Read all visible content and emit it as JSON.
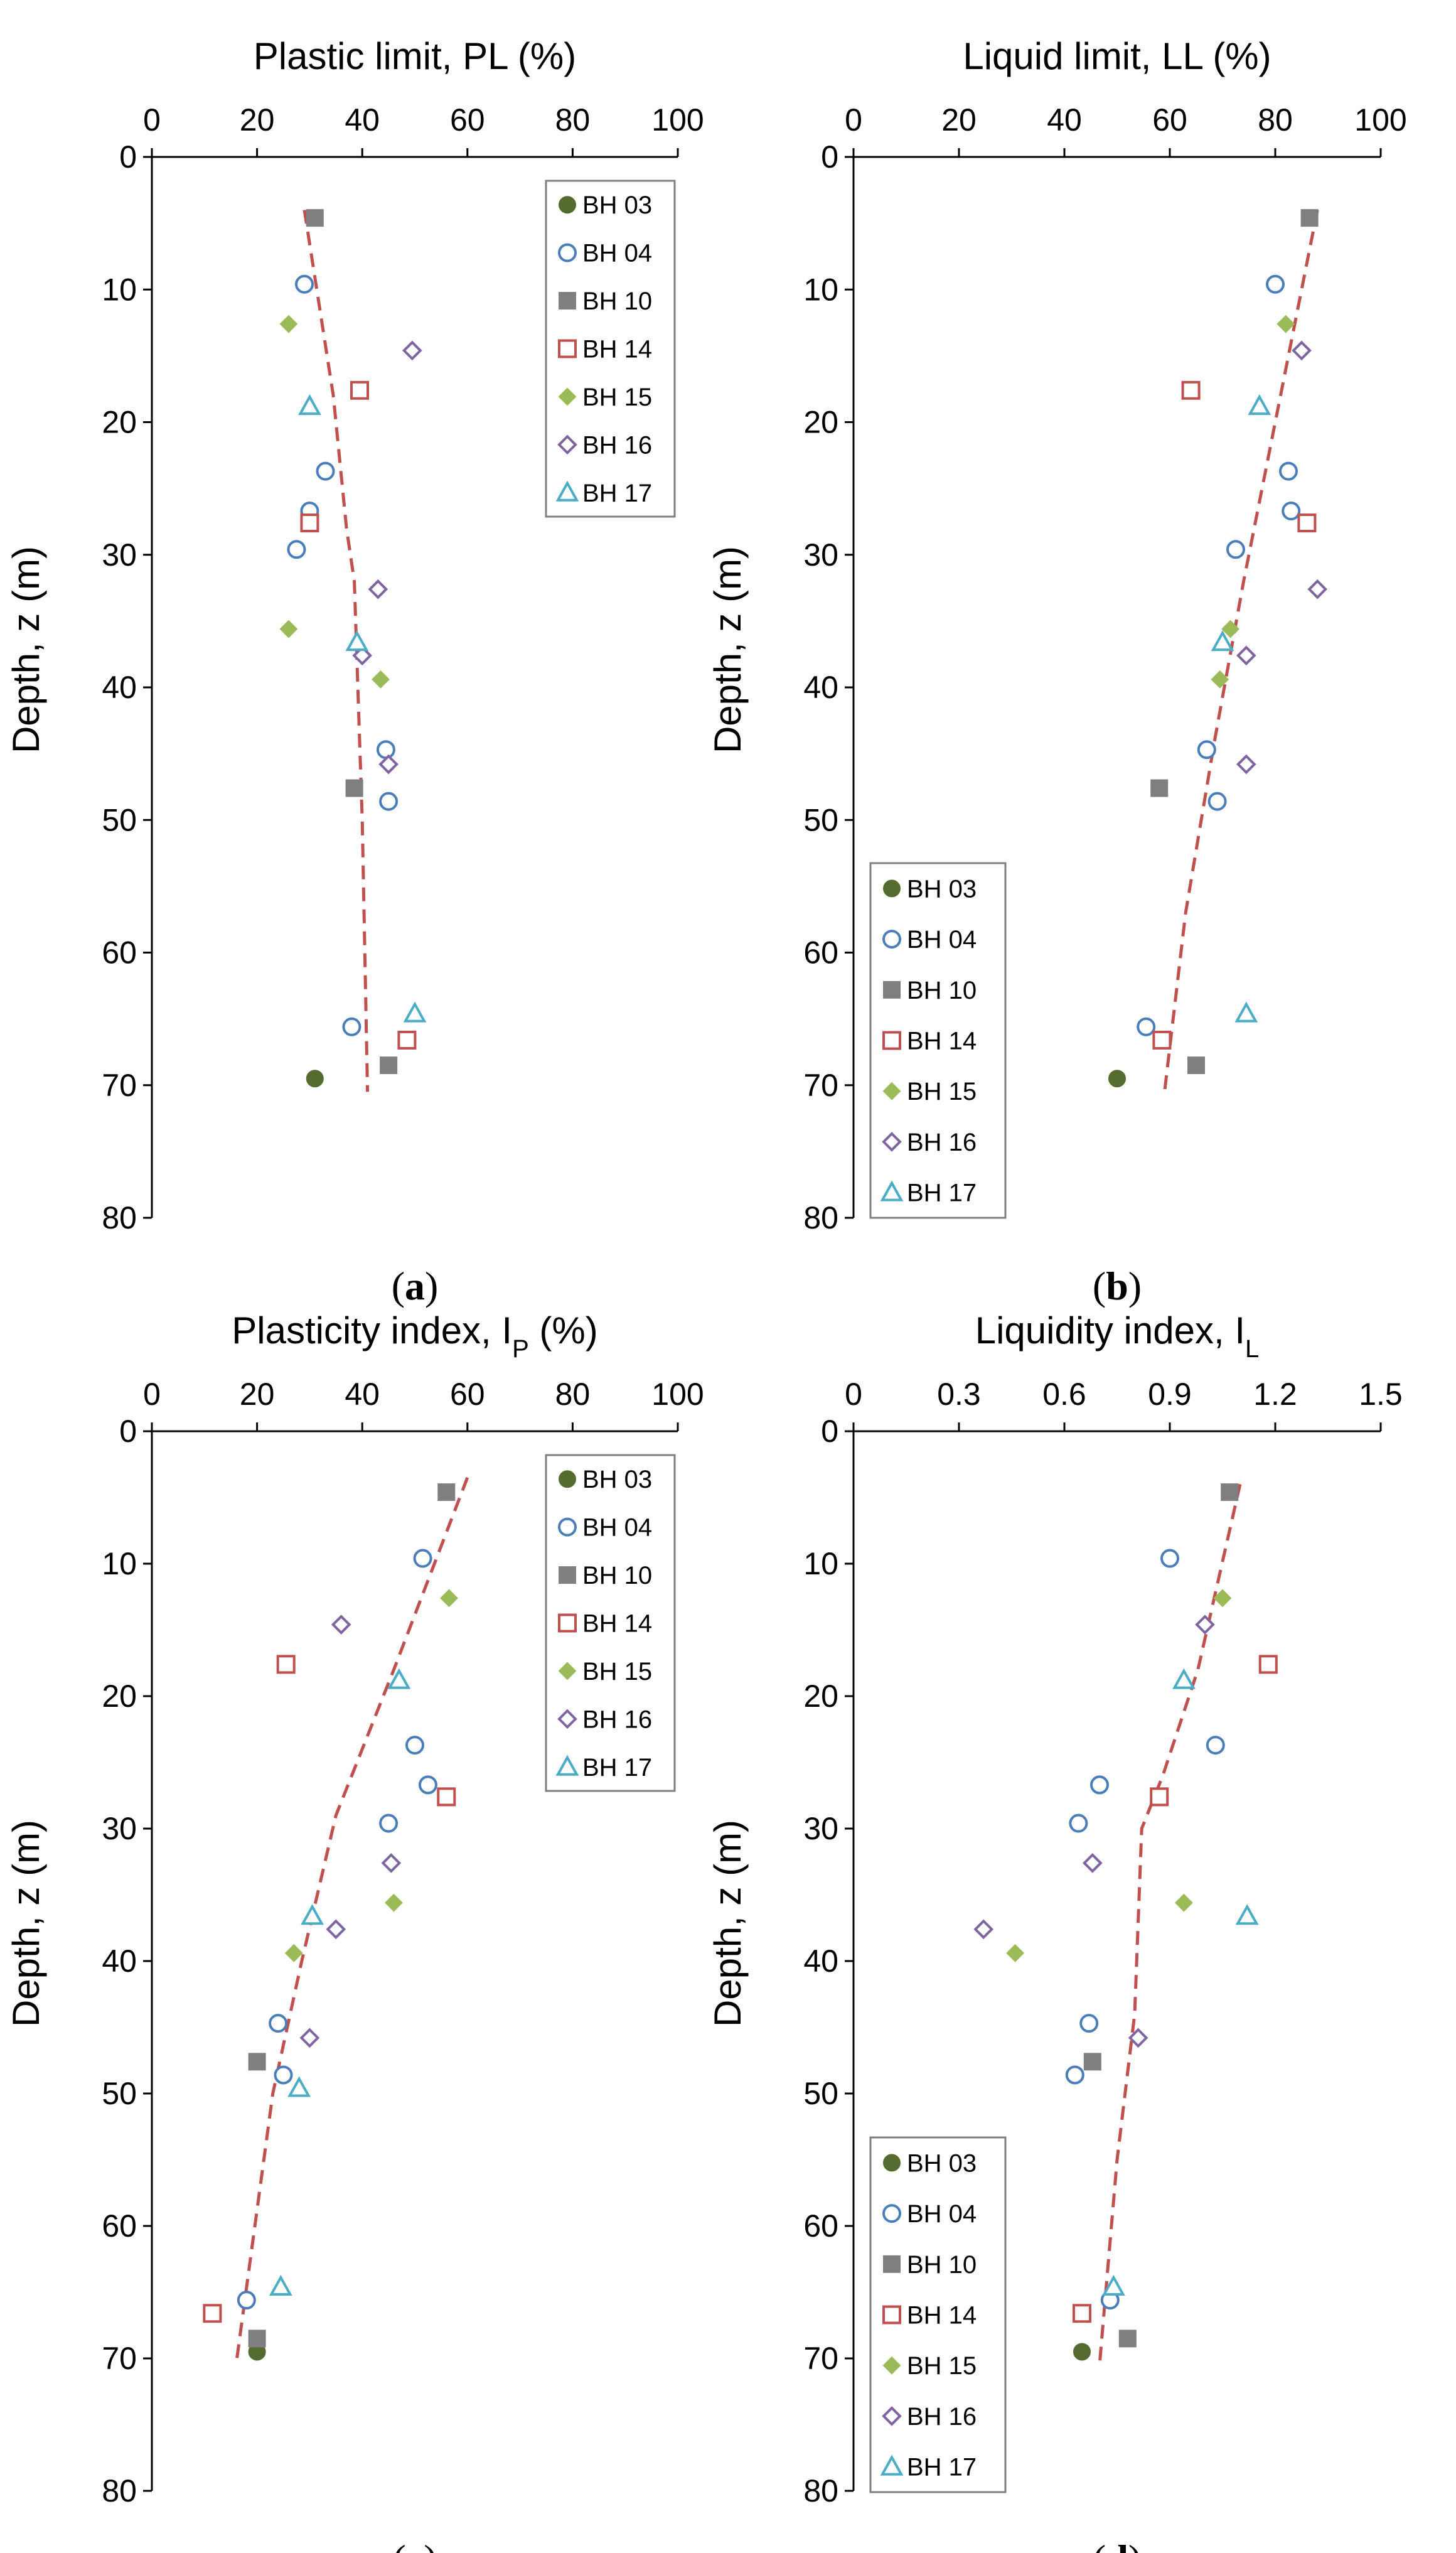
{
  "series_styles": {
    "BH 03": {
      "marker": "filled-circle",
      "color": "#556b2f"
    },
    "BH 04": {
      "marker": "open-circle",
      "color": "#4a7ebb"
    },
    "BH 10": {
      "marker": "filled-square",
      "color": "#7f7f7f"
    },
    "BH 14": {
      "marker": "open-square",
      "color": "#c0504d"
    },
    "BH 15": {
      "marker": "filled-diamond",
      "color": "#9bbb59"
    },
    "BH 16": {
      "marker": "open-diamond",
      "color": "#8064a2"
    },
    "BH 17": {
      "marker": "open-triangle",
      "color": "#4bacc6"
    }
  },
  "trend_color": "#c0504d",
  "chart_data": [
    {
      "id": "a",
      "type": "scatter",
      "caption_letter": "a",
      "xlabel_main": "Plastic limit, PL (%)",
      "xlabel_sub": "",
      "xlabel_tail": "",
      "ylabel": "Depth, z (m)",
      "xlim": [
        0,
        100
      ],
      "ylim": [
        0,
        80
      ],
      "x_ticks": [
        "0",
        "20",
        "40",
        "60",
        "80",
        "100"
      ],
      "y_ticks": [
        "0",
        "10",
        "20",
        "30",
        "40",
        "50",
        "60",
        "70",
        "80"
      ],
      "legend_position": "top-right",
      "series": [
        {
          "name": "BH 03",
          "points": [
            [
              31,
              69.5
            ]
          ]
        },
        {
          "name": "BH 04",
          "points": [
            [
              29,
              9.6
            ],
            [
              33,
              23.7
            ],
            [
              30,
              26.7
            ],
            [
              27.5,
              29.6
            ],
            [
              44.5,
              44.7
            ],
            [
              45,
              48.6
            ],
            [
              38,
              65.6
            ]
          ]
        },
        {
          "name": "BH 10",
          "points": [
            [
              31,
              4.6
            ],
            [
              38.5,
              47.6
            ],
            [
              45,
              68.5
            ]
          ]
        },
        {
          "name": "BH 14",
          "points": [
            [
              39.5,
              17.6
            ],
            [
              30,
              27.6
            ],
            [
              48.5,
              66.6
            ]
          ]
        },
        {
          "name": "BH 15",
          "points": [
            [
              26,
              12.6
            ],
            [
              26,
              35.6
            ],
            [
              43.5,
              39.4
            ]
          ]
        },
        {
          "name": "BH 16",
          "points": [
            [
              49.5,
              14.6
            ],
            [
              43,
              32.6
            ],
            [
              40,
              37.6
            ],
            [
              45,
              45.8
            ]
          ]
        },
        {
          "name": "BH 17",
          "points": [
            [
              30,
              18.8
            ],
            [
              39,
              36.6
            ],
            [
              50,
              64.6
            ]
          ]
        }
      ],
      "trend_line": [
        [
          29,
          4
        ],
        [
          34.5,
          18
        ],
        [
          37,
          28
        ],
        [
          38.5,
          32
        ],
        [
          40,
          50
        ],
        [
          41,
          70.5
        ]
      ]
    },
    {
      "id": "b",
      "type": "scatter",
      "caption_letter": "b",
      "xlabel_main": "Liquid limit, LL (%)",
      "xlabel_sub": "",
      "xlabel_tail": "",
      "ylabel": "Depth, z (m)",
      "xlim": [
        0,
        100
      ],
      "ylim": [
        0,
        80
      ],
      "x_ticks": [
        "0",
        "20",
        "40",
        "60",
        "80",
        "100"
      ],
      "y_ticks": [
        "0",
        "10",
        "20",
        "30",
        "40",
        "50",
        "60",
        "70",
        "80"
      ],
      "legend_position": "bottom-left",
      "series": [
        {
          "name": "BH 03",
          "points": [
            [
              50,
              69.5
            ]
          ]
        },
        {
          "name": "BH 04",
          "points": [
            [
              80,
              9.6
            ],
            [
              82.5,
              23.7
            ],
            [
              83,
              26.7
            ],
            [
              72.5,
              29.6
            ],
            [
              67,
              44.7
            ],
            [
              69,
              48.6
            ],
            [
              55.5,
              65.6
            ]
          ]
        },
        {
          "name": "BH 10",
          "points": [
            [
              86.5,
              4.6
            ],
            [
              58,
              47.6
            ],
            [
              65,
              68.5
            ]
          ]
        },
        {
          "name": "BH 14",
          "points": [
            [
              64,
              17.6
            ],
            [
              86,
              27.6
            ],
            [
              58.5,
              66.6
            ]
          ]
        },
        {
          "name": "BH 15",
          "points": [
            [
              82,
              12.6
            ],
            [
              71.5,
              35.6
            ],
            [
              69.5,
              39.4
            ]
          ]
        },
        {
          "name": "BH 16",
          "points": [
            [
              85,
              14.6
            ],
            [
              88,
              32.6
            ],
            [
              74.5,
              37.6
            ],
            [
              74.5,
              45.8
            ]
          ]
        },
        {
          "name": "BH 17",
          "points": [
            [
              77,
              18.8
            ],
            [
              70,
              36.6
            ],
            [
              74.5,
              64.6
            ]
          ]
        }
      ],
      "trend_line": [
        [
          88,
          4
        ],
        [
          80,
          20
        ],
        [
          74,
          32
        ],
        [
          68.5,
          44
        ],
        [
          63,
          57
        ],
        [
          59,
          70.5
        ]
      ]
    },
    {
      "id": "c",
      "type": "scatter",
      "caption_letter": "c",
      "xlabel_main": "Plasticity index, I",
      "xlabel_sub": "P",
      "xlabel_tail": " (%)",
      "ylabel": "Depth, z (m)",
      "xlim": [
        0,
        100
      ],
      "ylim": [
        0,
        80
      ],
      "x_ticks": [
        "0",
        "20",
        "40",
        "60",
        "80",
        "100"
      ],
      "y_ticks": [
        "0",
        "10",
        "20",
        "30",
        "40",
        "50",
        "60",
        "70",
        "80"
      ],
      "legend_position": "top-right",
      "series": [
        {
          "name": "BH 03",
          "points": [
            [
              20,
              69.5
            ]
          ]
        },
        {
          "name": "BH 04",
          "points": [
            [
              51.5,
              9.6
            ],
            [
              50,
              23.7
            ],
            [
              52.5,
              26.7
            ],
            [
              45,
              29.6
            ],
            [
              24,
              44.7
            ],
            [
              25,
              48.6
            ],
            [
              18,
              65.6
            ]
          ]
        },
        {
          "name": "BH 10",
          "points": [
            [
              56,
              4.6
            ],
            [
              20,
              47.6
            ],
            [
              20,
              68.5
            ]
          ]
        },
        {
          "name": "BH 14",
          "points": [
            [
              25.5,
              17.6
            ],
            [
              56,
              27.6
            ],
            [
              11.5,
              66.6
            ]
          ]
        },
        {
          "name": "BH 15",
          "points": [
            [
              56.5,
              12.6
            ],
            [
              46,
              35.6
            ],
            [
              27,
              39.4
            ]
          ]
        },
        {
          "name": "BH 16",
          "points": [
            [
              36,
              14.6
            ],
            [
              45.5,
              32.6
            ],
            [
              35,
              37.6
            ],
            [
              30,
              45.8
            ]
          ]
        },
        {
          "name": "BH 17",
          "points": [
            [
              47,
              18.8
            ],
            [
              30.5,
              36.6
            ],
            [
              28,
              49.6
            ],
            [
              24.5,
              64.6
            ]
          ]
        }
      ],
      "trend_line": [
        [
          60,
          3.5
        ],
        [
          46,
          18
        ],
        [
          35,
          29
        ],
        [
          28.5,
          40
        ],
        [
          23,
          50
        ],
        [
          16,
          70.5
        ]
      ]
    },
    {
      "id": "d",
      "type": "scatter",
      "caption_letter": "d",
      "xlabel_main": "Liquidity index, I",
      "xlabel_sub": "L",
      "xlabel_tail": "",
      "ylabel": "Depth, z (m)",
      "xlim": [
        0,
        1.5
      ],
      "ylim": [
        0,
        80
      ],
      "x_ticks": [
        "0",
        "0.3",
        "0.6",
        "0.9",
        "1.2",
        "1.5"
      ],
      "y_ticks": [
        "0",
        "10",
        "20",
        "30",
        "40",
        "50",
        "60",
        "70",
        "80"
      ],
      "legend_position": "bottom-left",
      "series": [
        {
          "name": "BH 03",
          "points": [
            [
              0.65,
              69.5
            ]
          ]
        },
        {
          "name": "BH 04",
          "points": [
            [
              0.9,
              9.6
            ],
            [
              1.03,
              23.7
            ],
            [
              0.7,
              26.7
            ],
            [
              0.64,
              29.6
            ],
            [
              0.67,
              44.7
            ],
            [
              0.63,
              48.6
            ],
            [
              0.73,
              65.6
            ]
          ]
        },
        {
          "name": "BH 10",
          "points": [
            [
              1.07,
              4.6
            ],
            [
              0.68,
              47.6
            ],
            [
              0.78,
              68.5
            ]
          ]
        },
        {
          "name": "BH 14",
          "points": [
            [
              1.18,
              17.6
            ],
            [
              0.87,
              27.6
            ],
            [
              0.65,
              66.6
            ]
          ]
        },
        {
          "name": "BH 15",
          "points": [
            [
              1.05,
              12.6
            ],
            [
              0.94,
              35.6
            ],
            [
              0.46,
              39.4
            ]
          ]
        },
        {
          "name": "BH 16",
          "points": [
            [
              1.0,
              14.6
            ],
            [
              0.68,
              32.6
            ],
            [
              0.37,
              37.6
            ],
            [
              0.81,
              45.8
            ]
          ]
        },
        {
          "name": "BH 17",
          "points": [
            [
              0.94,
              18.8
            ],
            [
              1.12,
              36.6
            ],
            [
              0.74,
              64.6
            ]
          ]
        }
      ],
      "trend_line": [
        [
          1.1,
          4
        ],
        [
          0.98,
          18
        ],
        [
          0.88,
          26
        ],
        [
          0.82,
          30
        ],
        [
          0.8,
          44
        ],
        [
          0.75,
          55
        ],
        [
          0.7,
          70.5
        ]
      ]
    }
  ]
}
